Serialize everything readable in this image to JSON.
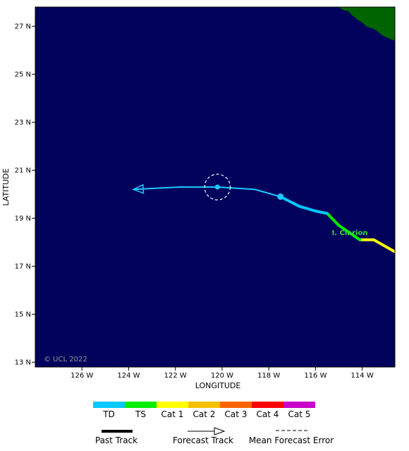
{
  "map": {
    "projection": "lat-lon",
    "ocean_color": "#02025c",
    "land_color": "#006400",
    "xlabel": "LONGITUDE",
    "ylabel": "LATITUDE",
    "xlim": [
      -128,
      -112.6
    ],
    "ylim": [
      12.8,
      27.8
    ],
    "x_ticks": [
      {
        "lon": -126,
        "label": "126 W"
      },
      {
        "lon": -124,
        "label": "124 W"
      },
      {
        "lon": -122,
        "label": "122 W"
      },
      {
        "lon": -120,
        "label": "120 W"
      },
      {
        "lon": -118,
        "label": "118 W"
      },
      {
        "lon": -116,
        "label": "116 W"
      },
      {
        "lon": -114,
        "label": "114 W"
      }
    ],
    "y_ticks": [
      {
        "lat": 27,
        "label": "27 N"
      },
      {
        "lat": 25,
        "label": "25 N"
      },
      {
        "lat": 23,
        "label": "23 N"
      },
      {
        "lat": 21,
        "label": "21 N"
      },
      {
        "lat": 19,
        "label": "19 N"
      },
      {
        "lat": 17,
        "label": "17 N"
      },
      {
        "lat": 15,
        "label": "15 N"
      },
      {
        "lat": 13,
        "label": "13 N"
      }
    ],
    "copyright": "© UCL 2022",
    "place_labels": [
      {
        "name": "I. Clarion",
        "lon": -115.3,
        "lat": 18.3,
        "color": "#33dd33"
      }
    ]
  },
  "chart_data": {
    "type": "map-track",
    "past_track": [
      {
        "lon": -112.6,
        "lat": 17.6,
        "category": "Cat 1"
      },
      {
        "lon": -113.5,
        "lat": 18.1,
        "category": "Cat 1"
      },
      {
        "lon": -114.1,
        "lat": 18.1,
        "category": "Cat 1"
      },
      {
        "lon": -114.4,
        "lat": 18.3,
        "category": "TS"
      },
      {
        "lon": -115.0,
        "lat": 18.7,
        "category": "TS"
      },
      {
        "lon": -115.5,
        "lat": 19.2,
        "category": "TS"
      },
      {
        "lon": -116.0,
        "lat": 19.3,
        "category": "TD"
      },
      {
        "lon": -116.7,
        "lat": 19.5,
        "category": "TD"
      },
      {
        "lon": -117.5,
        "lat": 19.9,
        "category": "TD"
      }
    ],
    "forecast_track": [
      {
        "lon": -117.5,
        "lat": 19.9
      },
      {
        "lon": -118.6,
        "lat": 20.2
      },
      {
        "lon": -120.2,
        "lat": 20.3
      },
      {
        "lon": -121.8,
        "lat": 20.3
      },
      {
        "lon": -123.8,
        "lat": 20.2
      }
    ],
    "current_position": {
      "lon": -117.5,
      "lat": 19.9
    },
    "forecast_point": {
      "lon": -120.2,
      "lat": 20.3,
      "error_radius_deg": 0.55
    },
    "track_color": "#1ec8ff"
  },
  "legend": {
    "categories": [
      {
        "label": "TD",
        "color": "#00c8ff"
      },
      {
        "label": "TS",
        "color": "#00ee00"
      },
      {
        "label": "Cat 1",
        "color": "#ffff00"
      },
      {
        "label": "Cat 2",
        "color": "#f5c000"
      },
      {
        "label": "Cat 3",
        "color": "#ff6400"
      },
      {
        "label": "Cat 4",
        "color": "#ff0000"
      },
      {
        "label": "Cat 5",
        "color": "#c800c8"
      }
    ],
    "past_track_label": "Past Track",
    "forecast_track_label": "Forecast Track",
    "mean_error_label": "Mean Forecast Error"
  }
}
